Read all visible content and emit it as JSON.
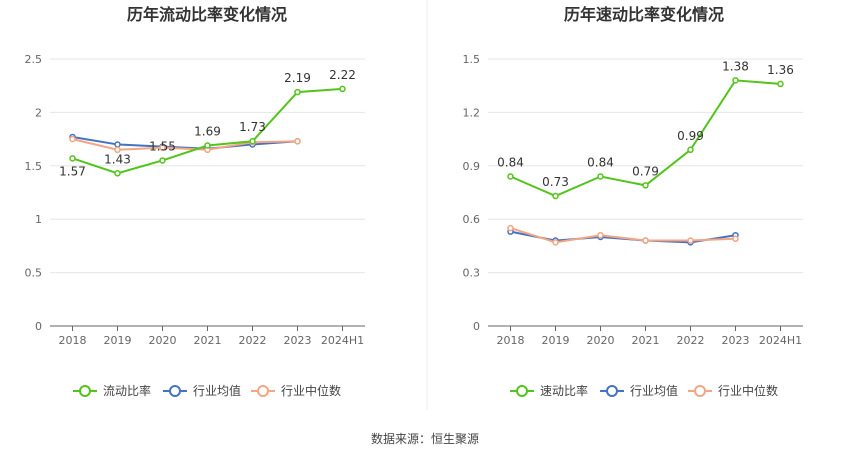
{
  "source_text": "数据来源：恒生聚源",
  "chart_data": [
    {
      "type": "line",
      "title": "历年流动比率变化情况",
      "categories": [
        "2018",
        "2019",
        "2020",
        "2021",
        "2022",
        "2023",
        "2024H1"
      ],
      "ylim": [
        0,
        2.5
      ],
      "yticks": [
        "0",
        "0.5",
        "1",
        "1.5",
        "2",
        "2.5"
      ],
      "ytick_values": [
        0,
        0.5,
        1,
        1.5,
        2,
        2.5
      ],
      "grid": true,
      "legend_position": "bottom",
      "series": [
        {
          "name": "流动比率",
          "color": "#52c41a",
          "values": [
            1.57,
            1.43,
            1.55,
            1.69,
            1.73,
            2.19,
            2.22
          ],
          "labels": [
            "1.57",
            "1.43",
            "1.55",
            "1.69",
            "1.73",
            "2.19",
            "2.22"
          ]
        },
        {
          "name": "行业均值",
          "color": "#4472c4",
          "values": [
            1.77,
            1.7,
            1.68,
            1.66,
            1.7,
            1.73,
            null
          ]
        },
        {
          "name": "行业中位数",
          "color": "#f4a582",
          "values": [
            1.75,
            1.65,
            1.67,
            1.65,
            1.72,
            1.73,
            null
          ]
        }
      ]
    },
    {
      "type": "line",
      "title": "历年速动比率变化情况",
      "categories": [
        "2018",
        "2019",
        "2020",
        "2021",
        "2022",
        "2023",
        "2024H1"
      ],
      "ylim": [
        0,
        1.5
      ],
      "yticks": [
        "0",
        "0.3",
        "0.6",
        "0.9",
        "1.2",
        "1.5"
      ],
      "ytick_values": [
        0,
        0.3,
        0.6,
        0.9,
        1.2,
        1.5
      ],
      "grid": true,
      "legend_position": "bottom",
      "series": [
        {
          "name": "速动比率",
          "color": "#52c41a",
          "values": [
            0.84,
            0.73,
            0.84,
            0.79,
            0.99,
            1.38,
            1.36
          ],
          "labels": [
            "0.84",
            "0.73",
            "0.84",
            "0.79",
            "0.99",
            "1.38",
            "1.36"
          ]
        },
        {
          "name": "行业均值",
          "color": "#4472c4",
          "values": [
            0.53,
            0.48,
            0.5,
            0.48,
            0.47,
            0.51,
            null
          ]
        },
        {
          "name": "行业中位数",
          "color": "#f4a582",
          "values": [
            0.55,
            0.47,
            0.51,
            0.48,
            0.48,
            0.49,
            null
          ]
        }
      ]
    }
  ]
}
